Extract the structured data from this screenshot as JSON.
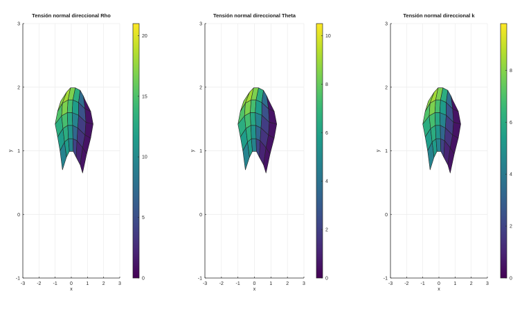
{
  "chart_data": [
    {
      "type": "heatmap",
      "title": "Tensión normal direccional Rho",
      "xlabel": "x",
      "ylabel": "y",
      "xlim": [
        -3,
        3
      ],
      "ylim": [
        -1,
        3
      ],
      "xticks": [
        "-3",
        "-2",
        "-1",
        "0",
        "1",
        "2",
        "3"
      ],
      "yticks": [
        "-1",
        "0",
        "1",
        "2",
        "3"
      ],
      "grid": true,
      "colormap": "viridis",
      "colorbar": {
        "min": 0,
        "max": 21,
        "ticks": [
          "0",
          "5",
          "10",
          "15",
          "20"
        ]
      },
      "levels": [
        [
          0.45,
          0.55,
          0.45,
          0.2,
          0.1,
          0.05
        ],
        [
          0.55,
          0.62,
          0.52,
          0.33,
          0.15,
          0.05
        ],
        [
          0.62,
          0.7,
          0.6,
          0.45,
          0.18,
          0.05
        ],
        [
          0.72,
          0.8,
          0.7,
          0.55,
          0.25,
          0.05
        ],
        [
          0.82,
          0.86,
          0.8,
          0.62,
          0.35,
          0.05
        ]
      ]
    },
    {
      "type": "heatmap",
      "title": "Tensión normal direccional Theta",
      "xlabel": "x",
      "ylabel": "y",
      "xlim": [
        -3,
        3
      ],
      "ylim": [
        -1,
        3
      ],
      "xticks": [
        "-3",
        "-2",
        "-1",
        "0",
        "1",
        "2",
        "3"
      ],
      "yticks": [
        "-1",
        "0",
        "1",
        "2",
        "3"
      ],
      "grid": true,
      "colormap": "viridis",
      "colorbar": {
        "min": 0,
        "max": 10.5,
        "ticks": [
          "0",
          "2",
          "4",
          "6",
          "8",
          "10"
        ]
      },
      "levels": [
        [
          0.45,
          0.55,
          0.45,
          0.2,
          0.1,
          0.05
        ],
        [
          0.55,
          0.62,
          0.52,
          0.33,
          0.15,
          0.05
        ],
        [
          0.62,
          0.7,
          0.6,
          0.45,
          0.18,
          0.05
        ],
        [
          0.72,
          0.8,
          0.7,
          0.55,
          0.25,
          0.05
        ],
        [
          0.82,
          0.86,
          0.8,
          0.62,
          0.35,
          0.05
        ]
      ]
    },
    {
      "type": "heatmap",
      "title": "Tensión normal direccional k",
      "xlabel": "x",
      "ylabel": "y",
      "xlim": [
        -3,
        3
      ],
      "ylim": [
        -1,
        3
      ],
      "xticks": [
        "-3",
        "-2",
        "-1",
        "0",
        "1",
        "2",
        "3"
      ],
      "yticks": [
        "-1",
        "0",
        "1",
        "2",
        "3"
      ],
      "grid": true,
      "colormap": "viridis",
      "colorbar": {
        "min": 0,
        "max": 9.8,
        "ticks": [
          "0",
          "2",
          "4",
          "6",
          "8"
        ]
      },
      "levels": [
        [
          0.45,
          0.55,
          0.45,
          0.2,
          0.1,
          0.05
        ],
        [
          0.55,
          0.62,
          0.52,
          0.33,
          0.15,
          0.05
        ],
        [
          0.62,
          0.7,
          0.6,
          0.45,
          0.18,
          0.05
        ],
        [
          0.72,
          0.8,
          0.7,
          0.55,
          0.25,
          0.05
        ],
        [
          0.82,
          0.86,
          0.8,
          0.62,
          0.35,
          0.05
        ]
      ]
    }
  ]
}
